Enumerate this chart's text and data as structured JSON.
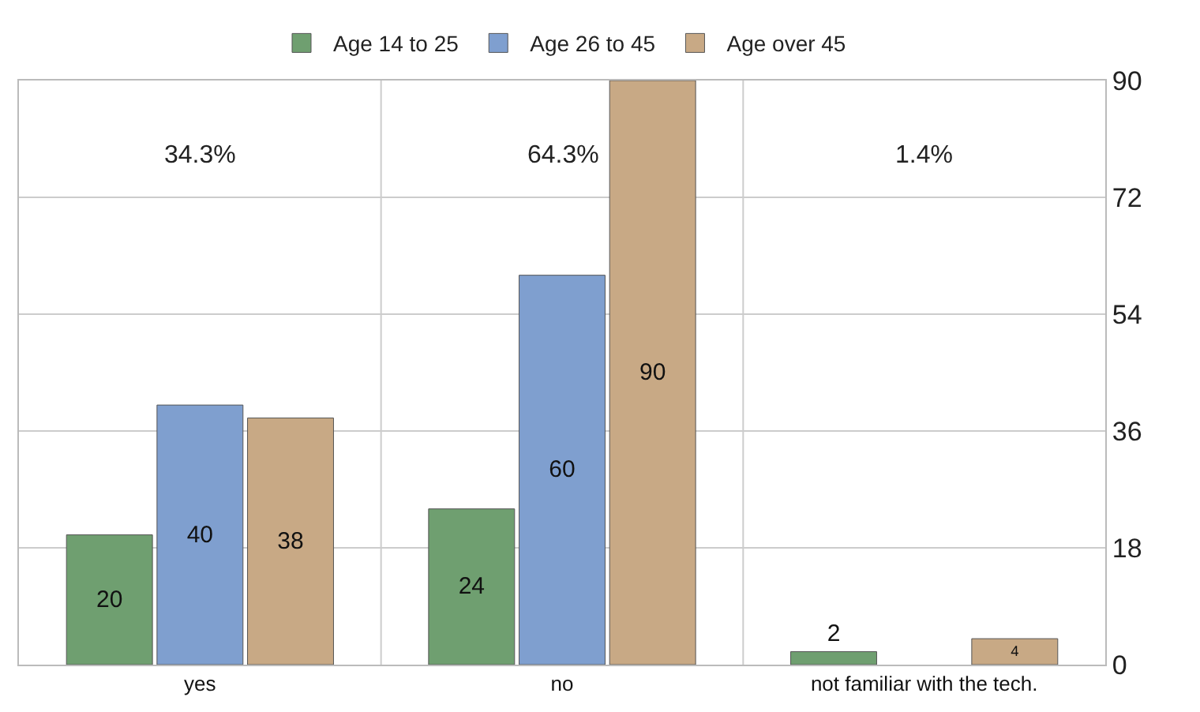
{
  "chart_data": {
    "type": "bar",
    "categories": [
      "yes",
      "no",
      "not familiar with the tech."
    ],
    "series": [
      {
        "name": "Age 14 to 25",
        "color": "#6f9f70",
        "values": [
          20,
          24,
          2
        ]
      },
      {
        "name": "Age 26 to 45",
        "color": "#7f9fcf",
        "values": [
          40,
          60,
          null
        ]
      },
      {
        "name": "Age over 45",
        "color": "#c8a985",
        "values": [
          38,
          90,
          4
        ]
      }
    ],
    "ylim": [
      0,
      90
    ],
    "yticks": [
      0,
      18,
      36,
      54,
      72,
      90
    ],
    "grid": "y",
    "legend": "top",
    "data_labels": true,
    "annotations": [
      "34.3%",
      "64.3%",
      "1.4%"
    ]
  }
}
